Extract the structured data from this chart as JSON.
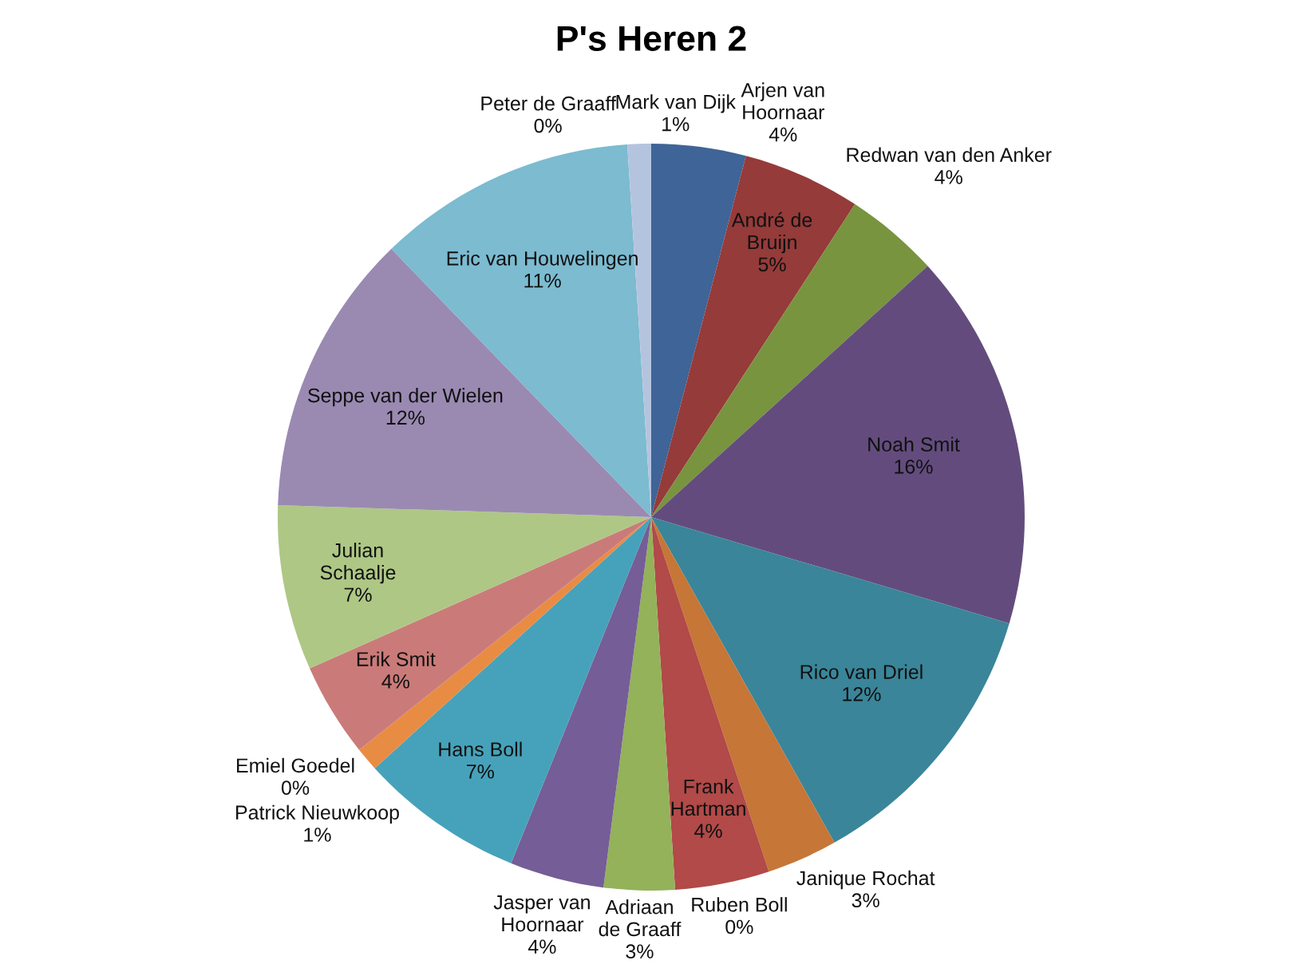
{
  "chart_data": {
    "type": "pie",
    "title": "P's Heren 2",
    "categories": [
      "Arjen van Hoornaar",
      "André de Bruijn",
      "Redwan van den Anker",
      "Noah Smit",
      "Rico van Driel",
      "Janique Rochat",
      "Ruben Boll",
      "Frank Hartman",
      "Adriaan de Graaff",
      "Jasper van Hoornaar",
      "Hans Boll",
      "Patrick Nieuwkoop",
      "Emiel Goedel",
      "Erik Smit",
      "Julian Schaalje",
      "Seppe van der Wielen",
      "Eric van Houwelingen",
      "Peter de Graaff",
      "Mark van Dijk"
    ],
    "values": [
      4,
      5,
      4,
      16,
      12,
      3,
      0,
      4,
      3,
      4,
      7,
      1,
      0,
      4,
      7,
      12,
      11,
      0,
      1
    ],
    "value_labels": [
      "4%",
      "5%",
      "4%",
      "16%",
      "12%",
      "3%",
      "0%",
      "4%",
      "3%",
      "4%",
      "7%",
      "1%",
      "0%",
      "4%",
      "7%",
      "12%",
      "11%",
      "0%",
      "1%"
    ],
    "colors": [
      "#3f6497",
      "#953b3a",
      "#78943f",
      "#634c7d",
      "#3a8599",
      "#c67636",
      "#4a7ebb",
      "#b14a48",
      "#93b25a",
      "#755d97",
      "#46a2ba",
      "#e88c44",
      "#7a9ace",
      "#ca7b79",
      "#aec785",
      "#9a8ab2",
      "#7cbbd0",
      "#f5ae75",
      "#b5c4de"
    ]
  }
}
